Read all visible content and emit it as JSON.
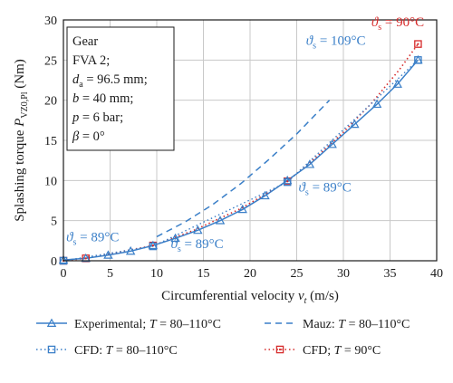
{
  "chart_data": {
    "type": "line",
    "xlabel": "Circumferential velocity v_t (m/s)",
    "xlabel_parts": {
      "main": "Circumferential velocity ",
      "var": "v",
      "sub": "t",
      "unit": " (m/s)"
    },
    "ylabel": "Splashing torque P_VZ0,Pl (Nm)",
    "ylabel_parts": {
      "main": "Splashing torque ",
      "var": "P",
      "sub": "VZ0,Pl",
      "unit": " (Nm)"
    },
    "xlim": [
      0,
      40
    ],
    "ylim": [
      0,
      30
    ],
    "xticks": [
      "0",
      "5",
      "10",
      "15",
      "20",
      "25",
      "30",
      "35",
      "40"
    ],
    "yticks": [
      "0",
      "5",
      "10",
      "15",
      "20",
      "25",
      "30"
    ],
    "grid": true,
    "legend_position": "bottom",
    "colors": {
      "experimental": "#3a7fc8",
      "mauz": "#3a7fc8",
      "cfd": "#3a7fc8",
      "cfd90": "#d62a2a"
    },
    "series": [
      {
        "name": "Experimental; T = 80–110°C",
        "legend_parts": {
          "pre": "Experimental; ",
          "var": "T",
          "post": " = 80–110°C"
        },
        "style": "solid-triangle",
        "x": [
          0,
          2.4,
          4.8,
          7.2,
          9.6,
          12.0,
          14.4,
          16.8,
          19.2,
          21.6,
          24.0,
          26.4,
          28.8,
          31.2,
          33.6,
          35.8,
          38.0
        ],
        "y": [
          0.1,
          0.3,
          0.7,
          1.2,
          1.9,
          2.8,
          3.8,
          5.0,
          6.4,
          8.1,
          10.0,
          12.0,
          14.5,
          17.0,
          19.5,
          22.0,
          25.0
        ]
      },
      {
        "name": "Mauz: T = 80–110°C",
        "legend_parts": {
          "pre": "Mauz: ",
          "var": "T",
          "post": " = 80–110°C"
        },
        "style": "dashed",
        "x": [
          10,
          13,
          16,
          19,
          22,
          25,
          28.5
        ],
        "y": [
          3.0,
          4.8,
          7.0,
          9.6,
          12.6,
          15.8,
          20.0
        ]
      },
      {
        "name": "CFD: T = 80–110°C",
        "legend_parts": {
          "pre": "CFD: ",
          "var": "T",
          "post": " = 80–110°C"
        },
        "style": "dotted-square",
        "x": [
          0,
          9.6,
          24.0,
          38.0
        ],
        "y": [
          0.0,
          1.8,
          9.8,
          25.0
        ]
      },
      {
        "name": "CFD; T = 90°C",
        "legend_parts": {
          "pre": "CFD; ",
          "var": "T",
          "post": " = 90°C"
        },
        "style": "dotted-square-red",
        "x": [
          0,
          2.4,
          9.6,
          14.0,
          19.0,
          24.0,
          27.0,
          30.0,
          33.0,
          36.0,
          38.0
        ],
        "y": [
          0.0,
          0.3,
          1.9,
          3.8,
          6.5,
          9.9,
          12.8,
          16.0,
          19.6,
          23.8,
          27.0
        ]
      }
    ],
    "markers": {
      "experimental_triangles_x": [
        0,
        2.4,
        4.8,
        7.2,
        9.6,
        12.0,
        14.4,
        16.8,
        19.2,
        21.6,
        24.0,
        26.4,
        28.8,
        31.2,
        33.6,
        35.8,
        38.0
      ],
      "cfd_squares_x": [
        0,
        9.6,
        24.0,
        38.0
      ],
      "cfd90_squares_x": [
        0,
        2.4,
        9.6,
        24.0,
        38.0
      ]
    },
    "info_box": {
      "lines": [
        {
          "text": "Gear"
        },
        {
          "text": "FVA 2;"
        },
        {
          "var": "d",
          "sub": "a",
          "post": " = 96.5 mm;"
        },
        {
          "var": "b",
          "post": " = 40 mm;"
        },
        {
          "var": "p",
          "post": " = 6 bar;"
        },
        {
          "var": "β",
          "post": " = 0°"
        }
      ]
    },
    "annotations": [
      {
        "sym": "ϑ",
        "sub": "s",
        "post": " = 90°C",
        "color": "red",
        "x": 33.0,
        "y": 29.2
      },
      {
        "sym": "ϑ",
        "sub": "s",
        "post": " = 109°C",
        "color": "blue",
        "x": 26.0,
        "y": 26.9
      },
      {
        "sym": "ϑ",
        "sub": "s",
        "post": " = 89°C",
        "color": "blue",
        "x": 25.2,
        "y": 8.6
      },
      {
        "sym": "ϑ",
        "sub": "s",
        "post": " = 89°C",
        "color": "blue",
        "x": 0.3,
        "y": 2.4
      },
      {
        "sym": "ϑ",
        "sub": "s",
        "post": " = 89°C",
        "color": "blue",
        "x": 11.5,
        "y": 1.6
      }
    ]
  }
}
